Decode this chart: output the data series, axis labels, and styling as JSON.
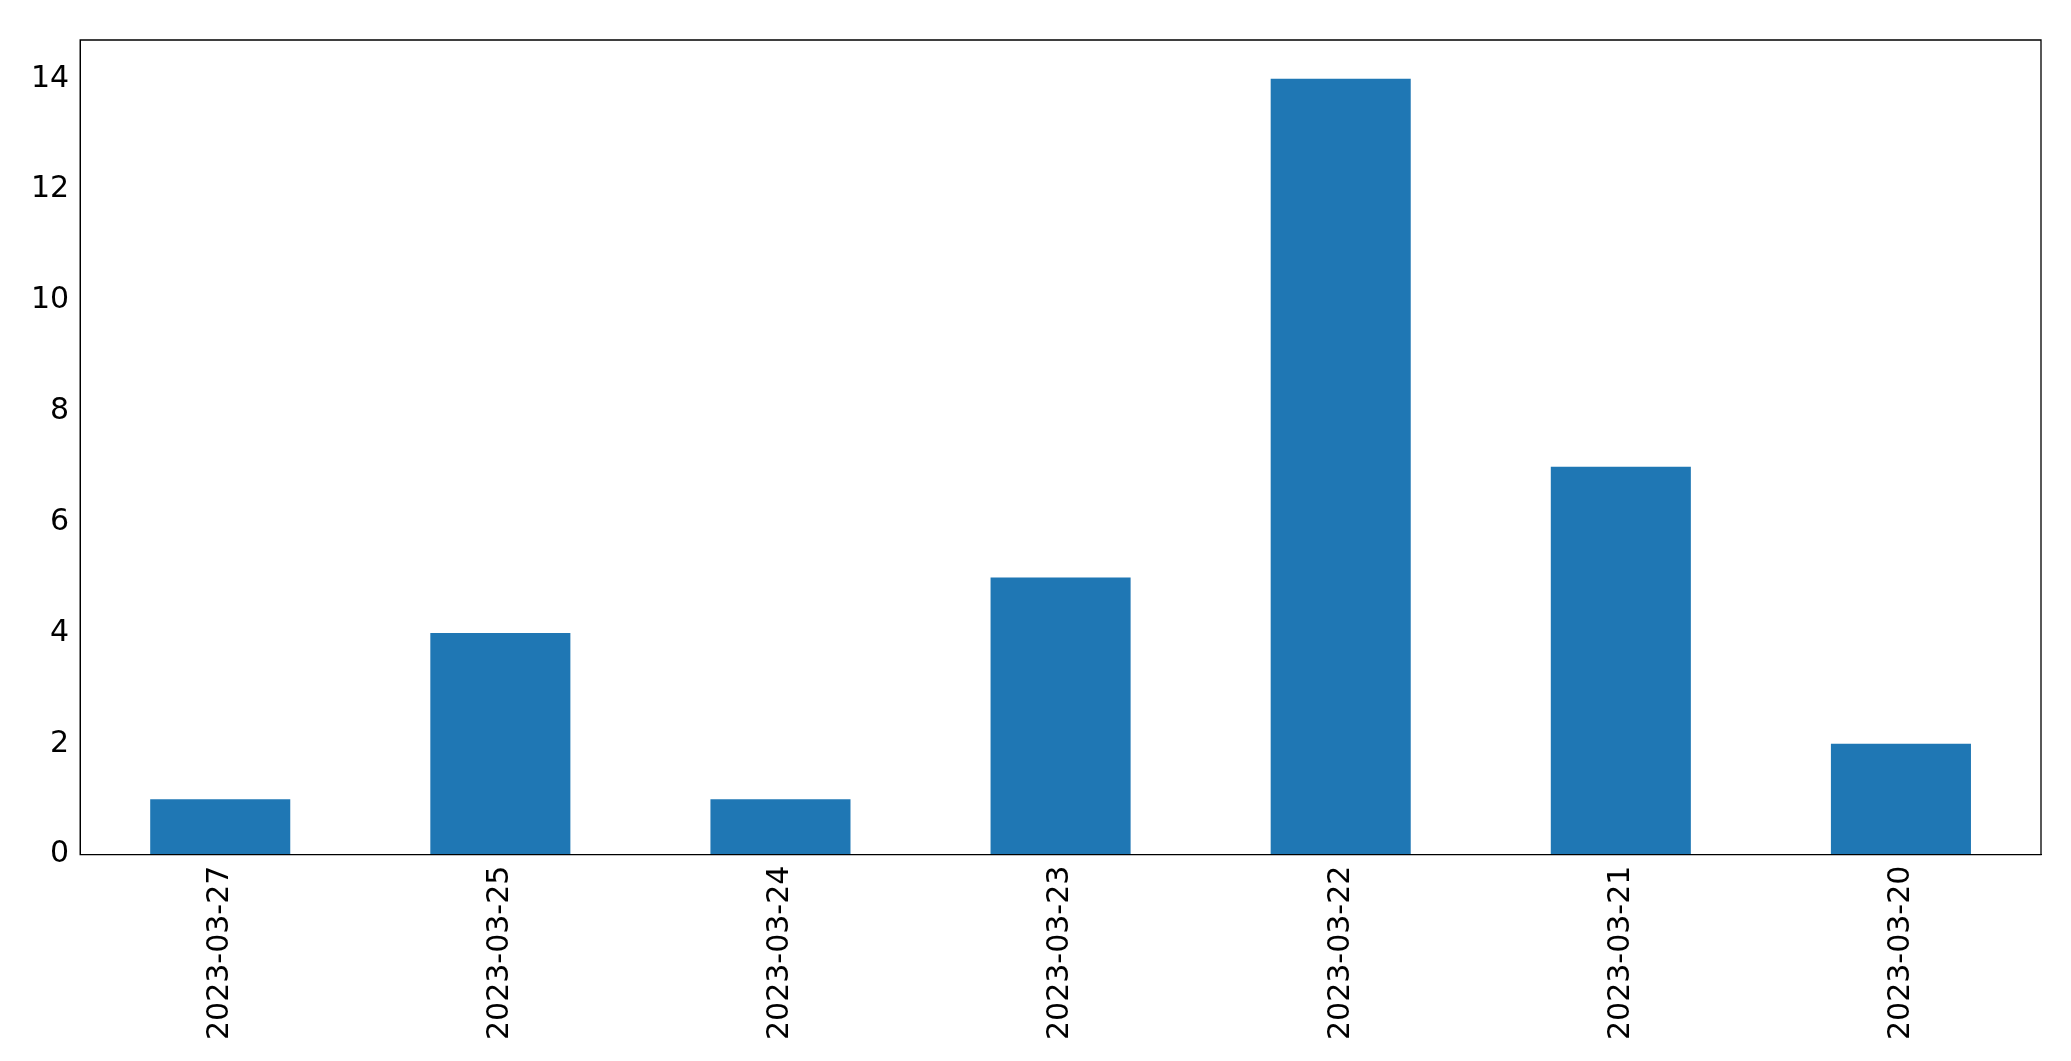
{
  "chart_data": {
    "type": "bar",
    "categories": [
      "2023-03-27",
      "2023-03-25",
      "2023-03-24",
      "2023-03-23",
      "2023-03-22",
      "2023-03-21",
      "2023-03-20"
    ],
    "values": [
      1,
      4,
      1,
      5,
      14,
      7,
      2
    ],
    "color": "#1f77b4",
    "ylim": [
      0,
      14.7
    ],
    "yticks": [
      0,
      2,
      4,
      6,
      8,
      10,
      12,
      14
    ],
    "grid": false,
    "legend": false
  }
}
